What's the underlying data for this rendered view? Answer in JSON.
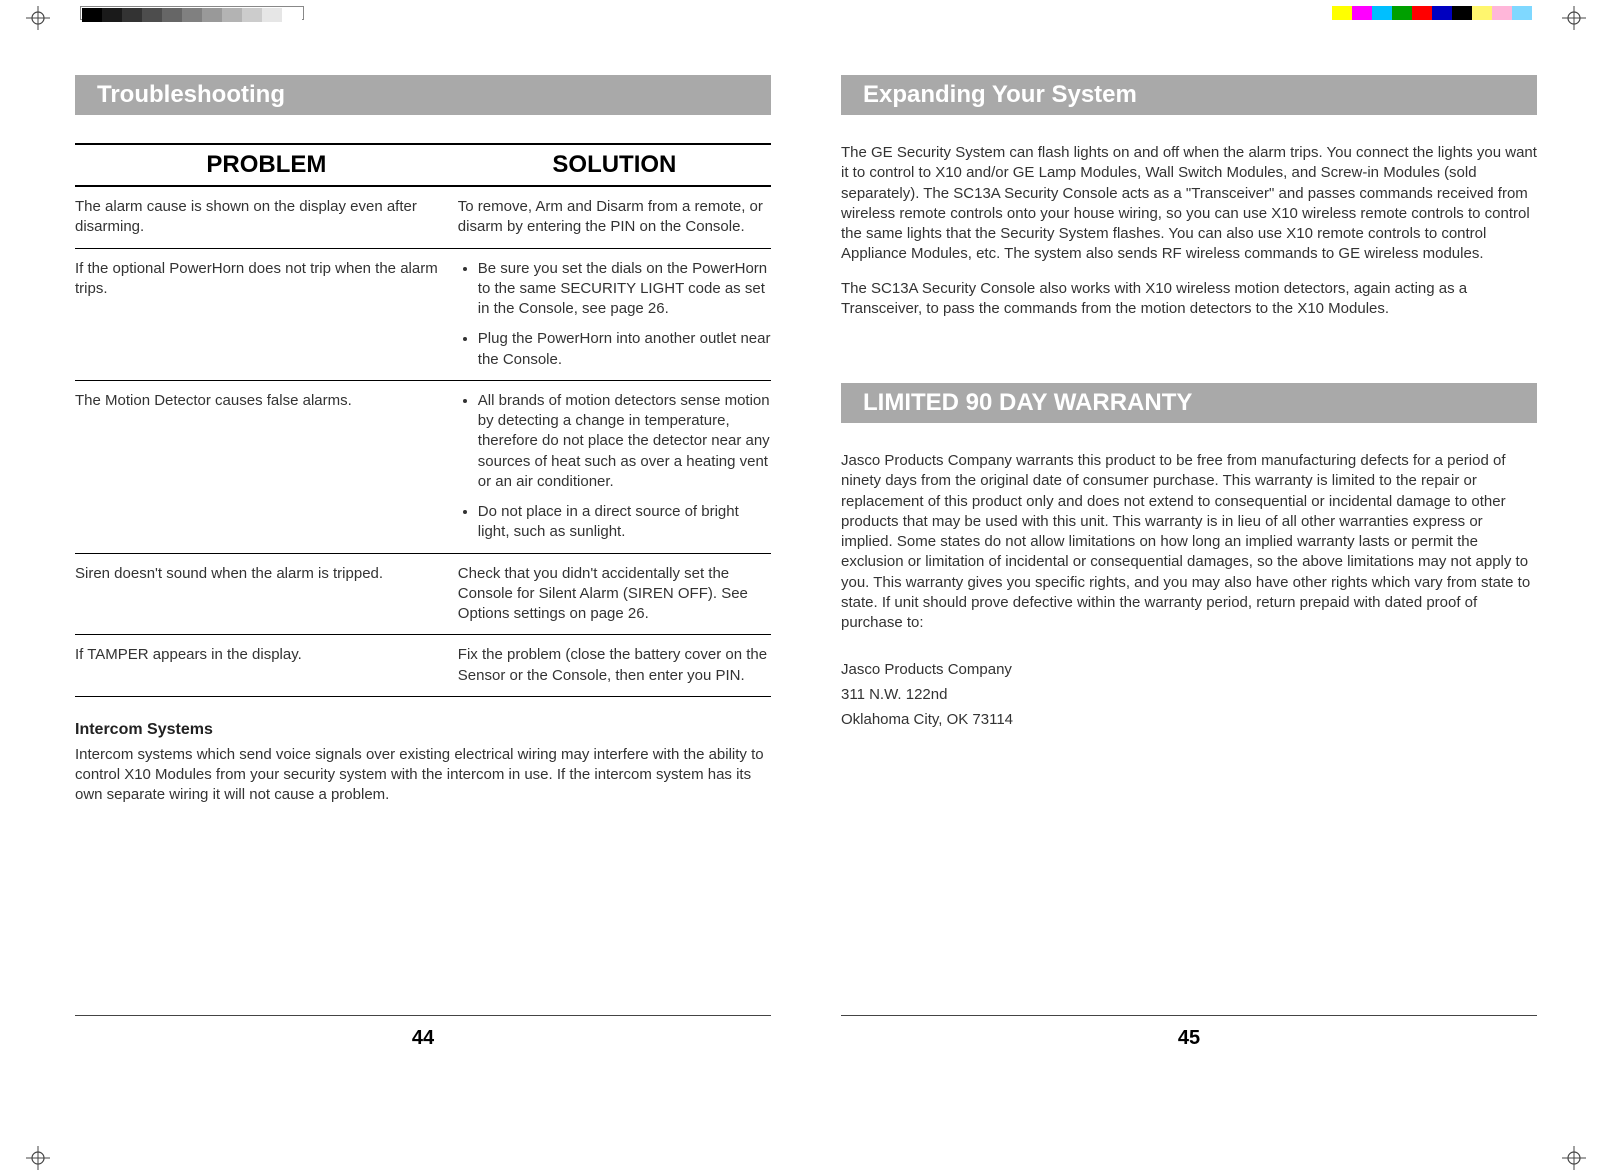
{
  "printerMarks": {
    "leftGrayBar": [
      "#000000",
      "#1a1a1a",
      "#333333",
      "#4d4d4d",
      "#666666",
      "#808080",
      "#999999",
      "#b3b3b3",
      "#cccccc",
      "#e6e6e6",
      "#ffffff"
    ],
    "rightColorBar": [
      "#ffff00",
      "#ff00ff",
      "#00bfff",
      "#00a000",
      "#ff0000",
      "#0000c0",
      "#000000",
      "#fff66e",
      "#ffb6d9",
      "#7fd8ff"
    ]
  },
  "leftPage": {
    "header": "Troubleshooting",
    "table": {
      "headers": {
        "problem": "PROBLEM",
        "solution": "SOLUTION"
      },
      "rows": [
        {
          "problem": "The alarm cause is shown on the display even after disarming.",
          "solution": {
            "text": "To remove, Arm and Disarm from a remote, or disarm by entering the PIN on the Console."
          }
        },
        {
          "problem": "If the optional PowerHorn does not trip when the alarm trips.",
          "solution": {
            "bullets": [
              "Be sure you set the dials on the PowerHorn to the same SECURITY LIGHT code as set in the Console, see page 26.",
              "Plug the PowerHorn into another outlet near the Console."
            ]
          }
        },
        {
          "problem": "The Motion Detector causes false alarms.",
          "solution": {
            "bullets": [
              "All brands of motion detectors sense motion by detecting a change in temperature, therefore do not place the detector near any sources of heat such as over a heating vent or an air conditioner.",
              "Do not place in a direct source of bright light, such as sunlight."
            ]
          }
        },
        {
          "problem": "Siren doesn't sound when the alarm is tripped.",
          "solution": {
            "text": "Check that you didn't accidentally set the Console for Silent Alarm (SIREN OFF). See Options settings on page 26."
          }
        },
        {
          "problem": "If TAMPER appears in the display.",
          "solution": {
            "text": "Fix the problem (close the  battery cover on the Sensor or the Console, then enter you PIN."
          }
        }
      ]
    },
    "subheading": "Intercom Systems",
    "subtext": "Intercom systems which send voice signals over existing electrical wiring may interfere with the ability to control X10 Modules from your security system with the intercom in use. If the intercom system has its own separate wiring it will not cause a problem.",
    "pageNumber": "44"
  },
  "rightPage": {
    "header1": "Expanding Your System",
    "para1": "The GE Security System can flash lights on and off when the alarm trips. You connect the lights you want it to control to X10 and/or GE Lamp Modules, Wall Switch Modules, and Screw-in Modules (sold separately).  The SC13A Security Console acts as a \"Transceiver\" and passes commands received from wireless remote controls onto your house wiring, so you can use X10 wireless remote controls to control the same lights that the Security System flashes. You can also use X10 remote controls to control Appliance Modules, etc. The system also sends RF wireless commands to GE wireless modules.",
    "para2": "The SC13A Security Console also works with X10 wireless motion detectors, again acting as a Transceiver, to pass the commands from the motion detectors to the X10 Modules.",
    "header2": "LIMITED 90 DAY WARRANTY",
    "warrantyText": "Jasco Products Company warrants this product to be free from manufacturing defects for a period of ninety days from the original date of consumer purchase.  This warranty is limited to the repair or replacement of this product only and does not extend to consequential or incidental damage to other products that may be used with this unit.  This warranty is in lieu of all other warranties express or implied.  Some states do not allow limitations on how long an implied warranty lasts or permit the exclusion or limitation of incidental or consequential damages, so the above limitations may not apply to you.  This warranty gives you specific rights, and you may also have other rights which vary from state to state.   If unit should prove defective within the warranty period, return prepaid with dated proof of purchase to:",
    "address": [
      "Jasco Products Company",
      "311 N.W. 122nd",
      "Oklahoma City, OK  73114"
    ],
    "pageNumber": "45"
  }
}
